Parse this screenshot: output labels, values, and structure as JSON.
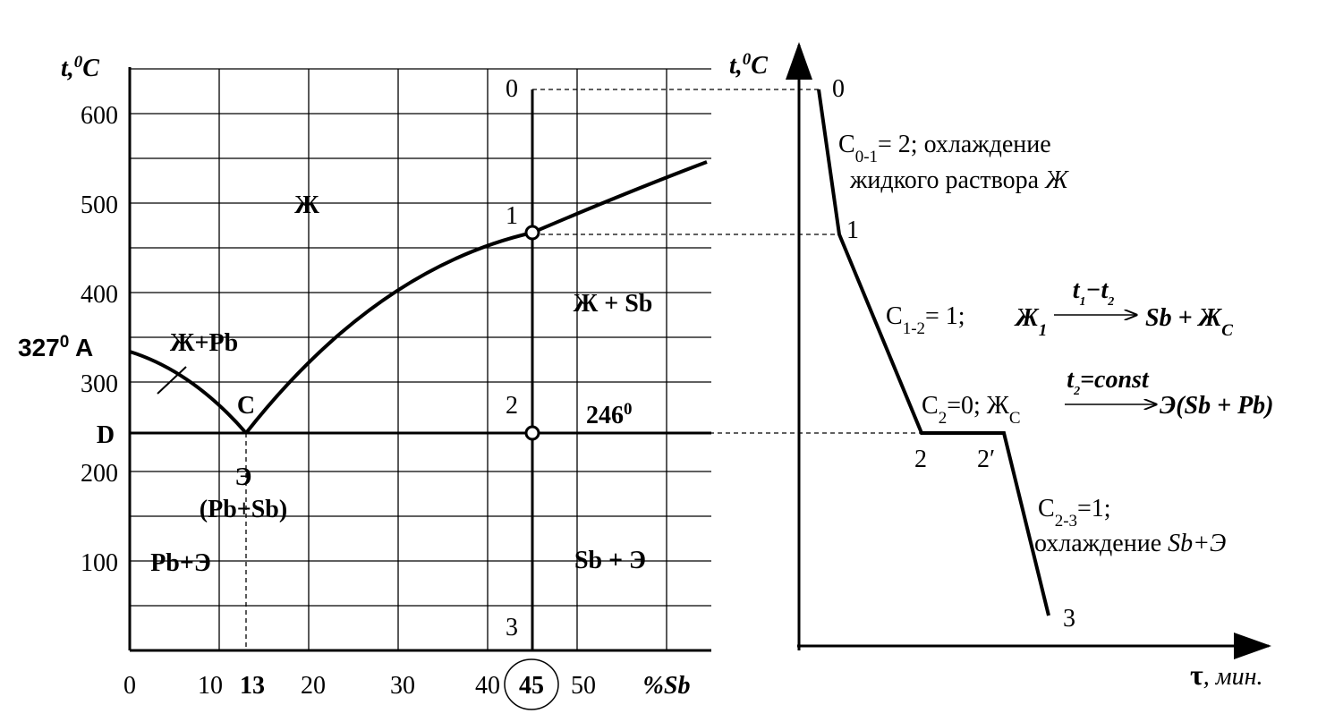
{
  "phase_diagram": {
    "y_axis": {
      "label": [
        "t,",
        "0",
        "C"
      ],
      "ticks": [
        "600",
        "500",
        "400",
        "300",
        "200",
        "100"
      ]
    },
    "x_axis": {
      "ticks": [
        "0",
        "10",
        "13",
        "20",
        "30",
        "40",
        "45",
        "50"
      ],
      "label": "%Sb"
    },
    "regions": {
      "liquid": "Ж",
      "liquid_sb": "Ж + Sb",
      "liquid_pb": "Ж+Pb",
      "sb_eutectic": "Sb + Э",
      "pb_eutectic": "Pb+Э",
      "eutectic": [
        "Э",
        "(Pb+Sb)"
      ]
    },
    "points": {
      "a": [
        "327",
        "0",
        " A"
      ],
      "c": "C",
      "d": "D",
      "eutectic_temp": [
        "246",
        "0"
      ]
    },
    "cooling_points": [
      "0",
      "1",
      "2",
      "3"
    ]
  },
  "cooling_curve": {
    "y_axis_label": [
      "t,",
      "0",
      "C"
    ],
    "x_axis_label": [
      "τ",
      ", мин."
    ],
    "points": [
      "0",
      "1",
      "2",
      "2′",
      "3"
    ],
    "annotations": {
      "stage_0_1": {
        "line1": [
          "C",
          "0-1",
          "= 2; охлаждение"
        ],
        "line2": [
          "жидкого раствора ",
          "Ж"
        ]
      },
      "stage_1_2": {
        "degree": [
          "C",
          "1-2",
          "= 1;"
        ],
        "from": [
          "Ж",
          "1"
        ],
        "arrow_label": [
          "t",
          "1",
          "−t",
          "2"
        ],
        "to": [
          "Sb + Ж",
          "C"
        ]
      },
      "stage_2": {
        "degree": [
          "C",
          "2",
          "=0; Ж",
          "C"
        ],
        "arrow_label": [
          "t",
          "2",
          "=const"
        ],
        "to": "Э(Sb + Pb)"
      },
      "stage_2_3": {
        "line1": [
          "C",
          "2-3",
          "=1;"
        ],
        "line2": [
          "охлаждение ",
          "Sb+Э"
        ]
      }
    }
  }
}
